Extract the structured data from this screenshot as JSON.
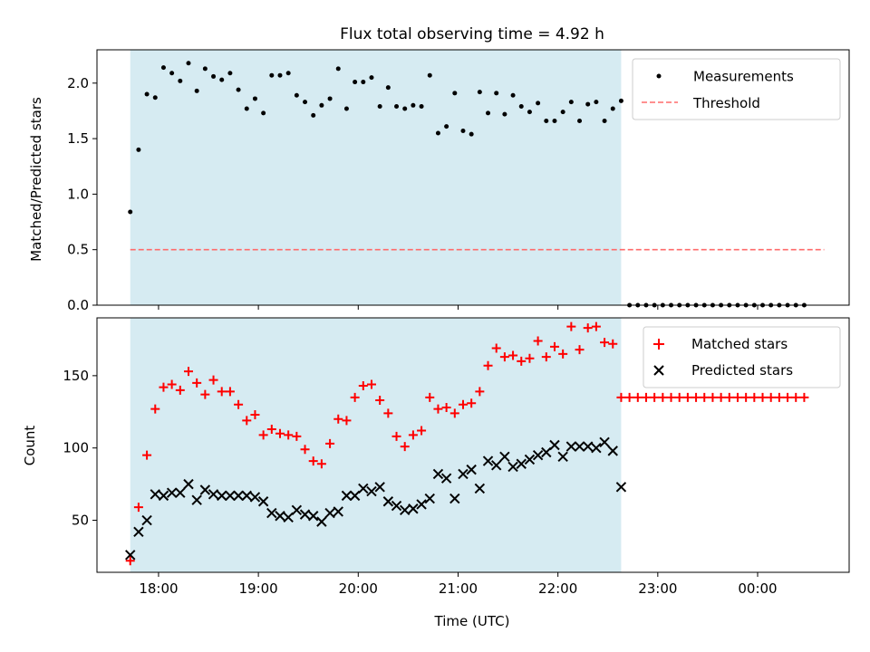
{
  "chart_data": [
    {
      "type": "scatter",
      "title": "Flux total observing time = 4.92 h",
      "xlabel": "",
      "ylabel": "Matched/Predicted stars",
      "x_axis": "time",
      "xlim": [
        "17:23",
        "00:55"
      ],
      "ylim": [
        0,
        2.3
      ],
      "yticks": [
        "0.0",
        "0.5",
        "1.0",
        "1.5",
        "2.0"
      ],
      "shaded_region": {
        "start": "17:43",
        "end": "22:38",
        "color": "#add8e6"
      },
      "threshold": {
        "name": "Threshold",
        "value": 0.5,
        "x_start": "17:43",
        "x_end": "00:40",
        "color": "#ff6b6b"
      },
      "legend": [
        "Measurements",
        "Threshold"
      ],
      "legend_position": "upper right",
      "series": [
        {
          "name": "Measurements",
          "color": "#000000",
          "start_time": "17:43",
          "interval_minutes": 5,
          "values": [
            0.84,
            1.4,
            1.9,
            1.87,
            2.14,
            2.09,
            2.02,
            2.18,
            1.93,
            2.13,
            2.06,
            2.03,
            2.09,
            1.94,
            1.77,
            1.86,
            1.73,
            2.07,
            2.07,
            2.09,
            1.89,
            1.83,
            1.71,
            1.8,
            1.86,
            2.13,
            1.77,
            2.01,
            2.01,
            2.05,
            1.79,
            1.96,
            1.79,
            1.77,
            1.8,
            1.79,
            2.07,
            1.55,
            1.61,
            1.91,
            1.57,
            1.54,
            1.92,
            1.73,
            1.91,
            1.72,
            1.89,
            1.79,
            1.74,
            1.82,
            1.66,
            1.66,
            1.74,
            1.83,
            1.66,
            1.81,
            1.83,
            1.66,
            1.77,
            1.84,
            0,
            0,
            0,
            0,
            0,
            0,
            0,
            0,
            0,
            0,
            0,
            0,
            0,
            0,
            0,
            0,
            0,
            0,
            0,
            0,
            0,
            0
          ]
        }
      ]
    },
    {
      "type": "scatter",
      "title": "",
      "xlabel": "Time (UTC)",
      "ylabel": "Count",
      "x_axis": "time",
      "xlim": [
        "17:23",
        "00:55"
      ],
      "ylim": [
        14,
        190
      ],
      "yticks": [
        "50",
        "100",
        "150"
      ],
      "xticks": [
        "18:00",
        "19:00",
        "20:00",
        "21:00",
        "22:00",
        "23:00",
        "00:00"
      ],
      "shaded_region": {
        "start": "17:43",
        "end": "22:38",
        "color": "#add8e6"
      },
      "legend": [
        "Matched stars",
        "Predicted stars"
      ],
      "legend_position": "upper right",
      "series": [
        {
          "name": "Matched stars",
          "marker": "+",
          "color": "#ff0000",
          "start_time": "17:43",
          "interval_minutes": 5,
          "values": [
            22,
            59,
            95,
            127,
            142,
            144,
            140,
            153,
            145,
            137,
            147,
            139,
            139,
            130,
            119,
            123,
            109,
            113,
            110,
            109,
            108,
            99,
            91,
            89,
            103,
            120,
            119,
            135,
            143,
            144,
            133,
            124,
            108,
            101,
            109,
            112,
            135,
            127,
            128,
            124,
            130,
            131,
            139,
            157,
            169,
            163,
            164,
            160,
            162,
            174,
            163,
            170,
            165,
            184,
            168,
            183,
            184,
            173,
            172,
            135,
            135,
            135,
            135,
            135,
            135,
            135,
            135,
            135,
            135,
            135,
            135,
            135,
            135,
            135,
            135,
            135,
            135,
            135,
            135,
            135,
            135,
            135
          ]
        },
        {
          "name": "Predicted stars",
          "marker": "x",
          "color": "#000000",
          "start_time": "17:43",
          "interval_minutes": 5,
          "values": [
            26,
            42,
            50,
            68,
            67,
            69,
            69,
            75,
            64,
            71,
            68,
            67,
            67,
            67,
            67,
            66,
            63,
            55,
            53,
            52,
            57,
            54,
            53,
            49,
            55,
            56,
            67,
            67,
            72,
            70,
            73,
            63,
            60,
            57,
            58,
            61,
            65,
            82,
            79,
            65,
            82,
            85,
            72,
            91,
            88,
            94,
            87,
            89,
            92,
            95,
            97,
            102,
            94,
            101,
            101,
            101,
            100,
            104,
            98,
            73
          ]
        }
      ]
    }
  ]
}
